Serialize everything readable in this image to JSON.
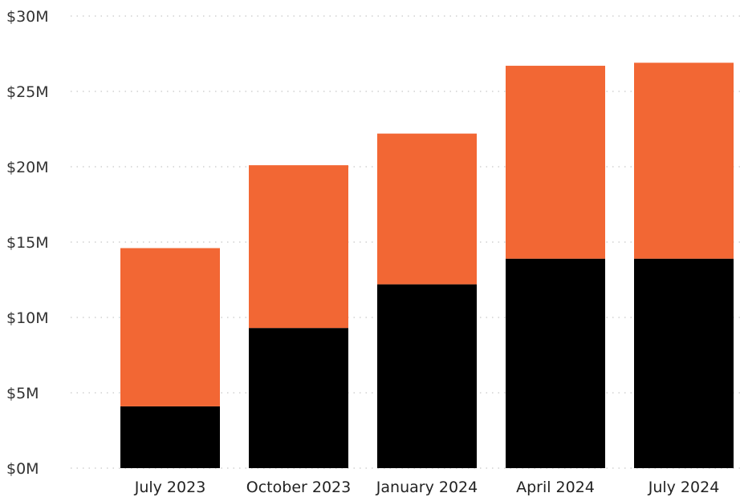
{
  "chart_data": {
    "type": "bar",
    "stacked": true,
    "categories": [
      "July 2023",
      "October 2023",
      "January 2024",
      "April 2024",
      "July 2024"
    ],
    "series": [
      {
        "color": "#000000",
        "values": [
          4.1,
          9.3,
          12.2,
          13.9,
          13.9
        ]
      },
      {
        "color": "#f26734",
        "values": [
          10.5,
          10.8,
          10.0,
          12.8,
          13.0
        ]
      }
    ],
    "ylim": [
      0,
      30
    ],
    "yticks": [
      0,
      5,
      10,
      15,
      20,
      25,
      30
    ],
    "ytick_labels": [
      "$0M",
      "$5M",
      "$10M",
      "$15M",
      "$20M",
      "$25M",
      "$30M"
    ],
    "grid": true,
    "legend": "none",
    "title": "",
    "xlabel": "",
    "ylabel": ""
  }
}
